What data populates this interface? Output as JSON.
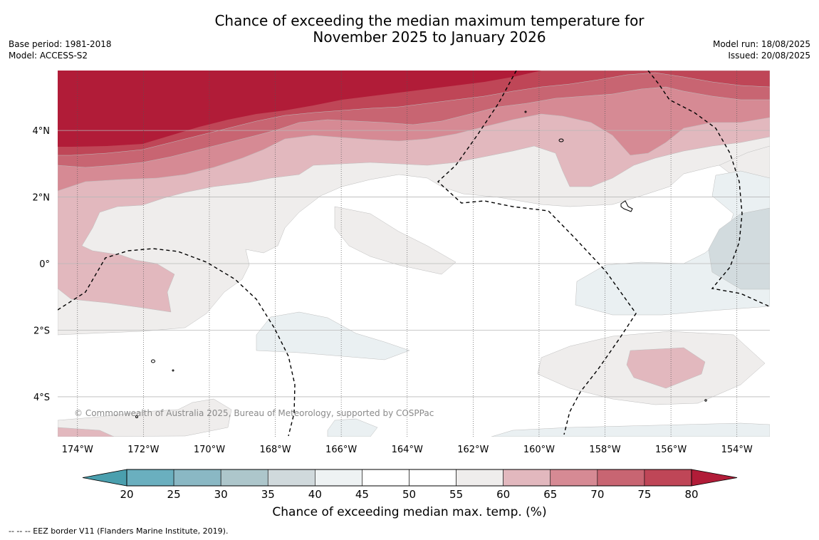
{
  "title": {
    "line1": "Chance of exceeding the median maximum temperature for",
    "line2": "November 2025 to January 2026"
  },
  "meta_left": {
    "base_period": "Base period: 1981-2018",
    "model": "Model: ACCESS-S2"
  },
  "meta_right": {
    "model_run": "Model run: 18/08/2025",
    "issued": "Issued: 20/08/2025"
  },
  "map": {
    "lon_range": [
      -174.6,
      -153.0
    ],
    "lat_range": [
      -5.2,
      5.8
    ],
    "lat_ticks": [
      {
        "value": 4,
        "label": "4°N"
      },
      {
        "value": 2,
        "label": "2°N"
      },
      {
        "value": 0,
        "label": "0°"
      },
      {
        "value": -2,
        "label": "2°S"
      },
      {
        "value": -4,
        "label": "4°S"
      }
    ],
    "lon_ticks": [
      {
        "value": -174,
        "label": "174°W"
      },
      {
        "value": -172,
        "label": "172°W"
      },
      {
        "value": -170,
        "label": "170°W"
      },
      {
        "value": -168,
        "label": "168°W"
      },
      {
        "value": -166,
        "label": "166°W"
      },
      {
        "value": -164,
        "label": "164°W"
      },
      {
        "value": -162,
        "label": "162°W"
      },
      {
        "value": -160,
        "label": "160°W"
      },
      {
        "value": -158,
        "label": "158°W"
      },
      {
        "value": -156,
        "label": "156°W"
      },
      {
        "value": -154,
        "label": "154°W"
      }
    ],
    "copyright": "© Commonwealth of Australia 2025, Bureau of Meteorology, supported by COSPPac"
  },
  "colorbar": {
    "ticks": [
      "20",
      "25",
      "30",
      "35",
      "40",
      "45",
      "50",
      "55",
      "60",
      "65",
      "70",
      "75",
      "80"
    ],
    "colors": [
      "#4a9fae",
      "#6aafbf",
      "#8ab8c4",
      "#adc6cb",
      "#d0d9dc",
      "#eef2f3",
      "#ffffff",
      "#ffffff",
      "#efedec",
      "#e2b8be",
      "#d68a94",
      "#c86572",
      "#bf4657",
      "#b11c38"
    ],
    "label": "Chance of exceeding median max. temp. (%)"
  },
  "footer": "--  --  -- EEZ border V11 (Flanders Marine Institute, 2019)."
}
